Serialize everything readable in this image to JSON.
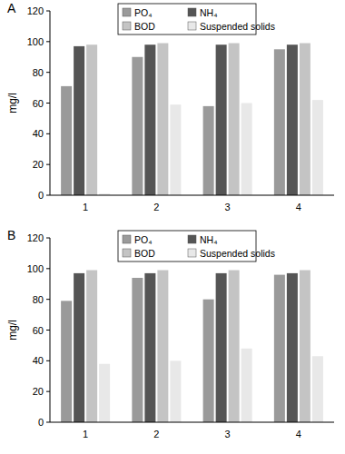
{
  "chart_data": [
    {
      "type": "bar",
      "title": "A",
      "y_label": "mg/l",
      "categories": [
        "1",
        "2",
        "3",
        "4"
      ],
      "series": [
        {
          "name": "PO₄",
          "color": "#9a9a9a",
          "values": [
            71,
            90,
            58,
            95
          ]
        },
        {
          "name": "NH₄",
          "color": "#555555",
          "values": [
            97,
            98,
            98,
            98
          ]
        },
        {
          "name": "BOD",
          "color": "#c4c4c4",
          "values": [
            98,
            99,
            99,
            99
          ]
        },
        {
          "name": "Suspended solids",
          "color": "#e8e8e8",
          "values": [
            1,
            59,
            60,
            62
          ]
        }
      ],
      "ylim": [
        0,
        120
      ],
      "yticks": [
        0,
        20,
        40,
        60,
        80,
        100,
        120
      ],
      "grid": false,
      "legend": "top"
    },
    {
      "type": "bar",
      "title": "B",
      "y_label": "mg/l",
      "categories": [
        "1",
        "2",
        "3",
        "4"
      ],
      "series": [
        {
          "name": "PO₄",
          "color": "#9a9a9a",
          "values": [
            79,
            94,
            80,
            96
          ]
        },
        {
          "name": "NH₄",
          "color": "#555555",
          "values": [
            97,
            97,
            97,
            97
          ]
        },
        {
          "name": "BOD",
          "color": "#c4c4c4",
          "values": [
            99,
            99,
            99,
            99
          ]
        },
        {
          "name": "Suspended solids",
          "color": "#e8e8e8",
          "values": [
            38,
            40,
            48,
            43
          ]
        }
      ],
      "ylim": [
        0,
        120
      ],
      "yticks": [
        0,
        20,
        40,
        60,
        80,
        100,
        120
      ],
      "grid": false,
      "legend": "top"
    }
  ]
}
